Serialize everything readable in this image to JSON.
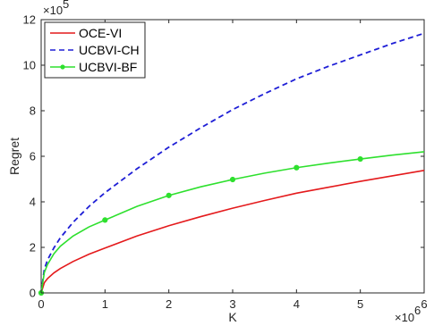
{
  "chart_data": {
    "type": "line",
    "xlabel": "K",
    "ylabel": "Regret",
    "x_multiplier": "×10",
    "x_multiplier_exp": "6",
    "y_multiplier": "×10",
    "y_multiplier_exp": "5",
    "xlim": [
      0,
      6
    ],
    "ylim": [
      0,
      12
    ],
    "x_ticks": [
      "0",
      "1",
      "2",
      "3",
      "4",
      "5",
      "6"
    ],
    "y_ticks": [
      "0",
      "2",
      "4",
      "6",
      "8",
      "10",
      "12"
    ],
    "legend_position": "top-left",
    "grid": false,
    "series": [
      {
        "name": "OCE-VI",
        "color": "#e41a1c",
        "style": "solid",
        "marker": "none",
        "x": [
          0,
          0.05,
          0.1,
          0.2,
          0.3,
          0.5,
          0.75,
          1,
          1.5,
          2,
          2.5,
          3,
          3.5,
          4,
          4.5,
          5,
          5.5,
          6
        ],
        "y": [
          0,
          0.45,
          0.63,
          0.88,
          1.07,
          1.38,
          1.7,
          1.97,
          2.5,
          2.95,
          3.35,
          3.72,
          4.06,
          4.38,
          4.64,
          4.9,
          5.14,
          5.38
        ]
      },
      {
        "name": "UCBVI-CH",
        "color": "#1f1fd6",
        "style": "dashed",
        "marker": "none",
        "x": [
          0,
          0.05,
          0.1,
          0.2,
          0.3,
          0.5,
          0.75,
          1,
          1.5,
          2,
          2.5,
          3,
          3.5,
          4,
          4.5,
          5,
          5.5,
          6
        ],
        "y": [
          0,
          1.05,
          1.45,
          1.98,
          2.42,
          3.1,
          3.8,
          4.4,
          5.45,
          6.4,
          7.25,
          8.05,
          8.75,
          9.4,
          9.95,
          10.45,
          10.95,
          11.4
        ]
      },
      {
        "name": "UCBVI-BF",
        "color": "#2ee02e",
        "style": "solid",
        "marker": "circle",
        "x": [
          0,
          0.05,
          0.1,
          0.2,
          0.3,
          0.5,
          0.75,
          1,
          1.5,
          2,
          2.5,
          3,
          3.5,
          4,
          4.5,
          5,
          5.5,
          6
        ],
        "y": [
          0,
          0.9,
          1.25,
          1.72,
          2.05,
          2.5,
          2.9,
          3.2,
          3.8,
          4.28,
          4.66,
          4.98,
          5.26,
          5.5,
          5.7,
          5.88,
          6.05,
          6.2
        ],
        "marker_x": [
          0,
          1,
          2,
          3,
          4,
          5
        ],
        "marker_y": [
          0,
          3.2,
          4.28,
          4.98,
          5.5,
          5.88
        ]
      }
    ]
  }
}
